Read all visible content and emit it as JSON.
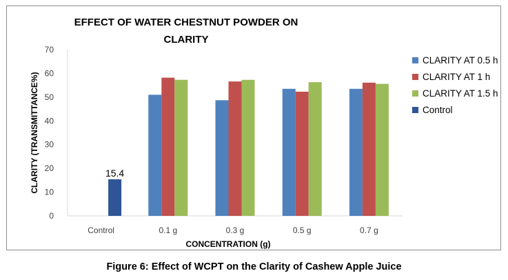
{
  "chart_data": {
    "type": "bar",
    "title_lines": [
      "EFFECT OF WATER CHESTNUT POWDER ON",
      "CLARITY"
    ],
    "xlabel": "CONCENTRATION (g)",
    "ylabel": "CLARITY (TRANSMITTANCE%)",
    "categories": [
      "Control",
      "0.1 g",
      "0.3 g",
      "0.5 g",
      "0.7 g"
    ],
    "ylim": [
      0,
      70
    ],
    "yticks": [
      0,
      10,
      20,
      30,
      40,
      50,
      60,
      70
    ],
    "grid": false,
    "legend_position": "right",
    "series": [
      {
        "name": "CLARITY AT 0.5 h",
        "color": "#4f81bd",
        "values": [
          null,
          51,
          48.7,
          53.5,
          53.5
        ]
      },
      {
        "name": "CLARITY AT 1 h",
        "color": "#c0504d",
        "values": [
          null,
          58.2,
          56.6,
          52.3,
          56.1
        ]
      },
      {
        "name": "CLARITY AT 1.5 h",
        "color": "#9bbb59",
        "values": [
          null,
          57.3,
          57.3,
          56.3,
          55.6
        ]
      },
      {
        "name": "Control",
        "color": "#2f5597",
        "values": [
          15.4,
          null,
          null,
          null,
          null
        ]
      }
    ],
    "annotations": [
      {
        "category": "Control",
        "series": "Control",
        "text": "15.4"
      }
    ]
  },
  "figure": {
    "caption": "Figure 6: Effect of WCPT on the Clarity of Cashew Apple Juice"
  }
}
